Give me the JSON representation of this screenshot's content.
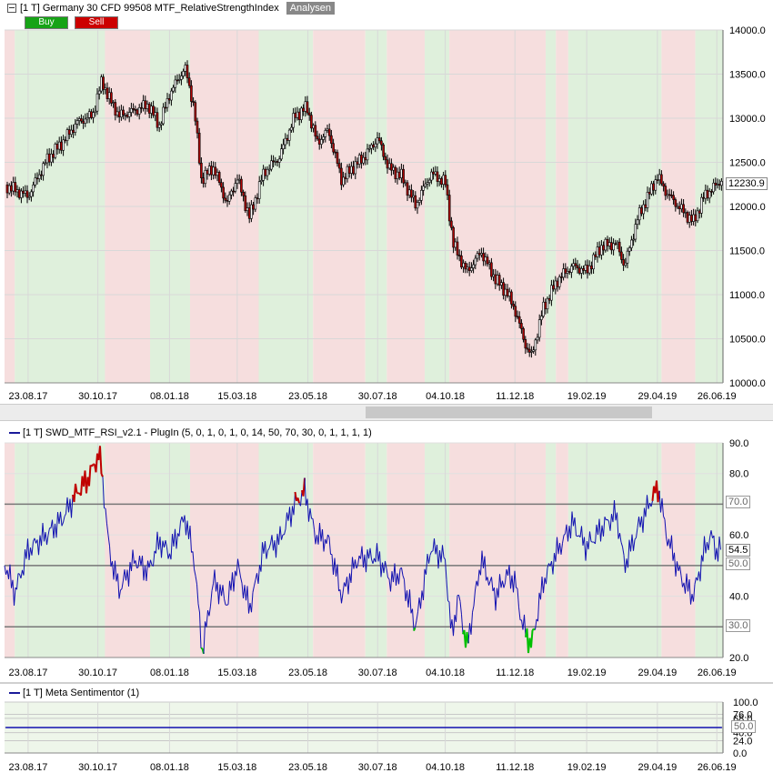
{
  "price_panel": {
    "title": "[1 T] Germany 30 CFD   99508 MTF_RelativeStrengthIndex",
    "analysen_tag": "Analysen",
    "buy_label": "Buy",
    "sell_label": "Sell",
    "last_value": "12230.9",
    "buy_color": "#17a317",
    "sell_color": "#cc0000"
  },
  "rsi_panel": {
    "title": "[1 T] SWD_MTF_RSI_v2.1 - PlugIn  (5, 0, 1, 0, 1, 0, 14, 50, 70, 30, 0, 1, 1, 1, 1)",
    "last_value": "54.5",
    "level_70": "70.0",
    "level_50": "50.0",
    "level_30": "30.0"
  },
  "sentimentor_panel": {
    "title": "[1 T] Meta Sentimentor  (1)",
    "level_50": "50.0"
  },
  "colors": {
    "bull_zone": "#dff0dc",
    "bear_zone": "#f6dede",
    "rsi_line": "#1010b0",
    "rsi_overbought": "#c00000",
    "rsi_oversold": "#00c000",
    "candle_bear_fill": "#b00000"
  },
  "chart_data": [
    {
      "type": "candlestick",
      "title": "Germany 30 CFD",
      "x_ticks": [
        "23.08.17",
        "30.10.17",
        "08.01.18",
        "15.03.18",
        "23.05.18",
        "30.07.18",
        "04.10.18",
        "11.12.18",
        "19.02.19",
        "29.04.19",
        "26.06.19"
      ],
      "y_ticks": [
        "14000.0",
        "13500.0",
        "13000.0",
        "12500.0",
        "12000.0",
        "11500.0",
        "11000.0",
        "10500.0",
        "10000.0"
      ],
      "ylim": [
        10000,
        14000
      ],
      "close_series": [
        {
          "date": "2017-08-01",
          "close": 12250
        },
        {
          "date": "2017-08-23",
          "close": 12100
        },
        {
          "date": "2017-09-10",
          "close": 12500
        },
        {
          "date": "2017-09-25",
          "close": 12700
        },
        {
          "date": "2017-10-10",
          "close": 12950
        },
        {
          "date": "2017-10-25",
          "close": 13050
        },
        {
          "date": "2017-11-03",
          "close": 13450
        },
        {
          "date": "2017-11-10",
          "close": 13250
        },
        {
          "date": "2017-11-20",
          "close": 13050
        },
        {
          "date": "2017-12-05",
          "close": 13100
        },
        {
          "date": "2017-12-18",
          "close": 13150
        },
        {
          "date": "2017-12-29",
          "close": 12900
        },
        {
          "date": "2018-01-08",
          "close": 13250
        },
        {
          "date": "2018-01-23",
          "close": 13550
        },
        {
          "date": "2018-02-01",
          "close": 13100
        },
        {
          "date": "2018-02-08",
          "close": 12300
        },
        {
          "date": "2018-02-20",
          "close": 12450
        },
        {
          "date": "2018-03-05",
          "close": 12050
        },
        {
          "date": "2018-03-15",
          "close": 12350
        },
        {
          "date": "2018-03-27",
          "close": 11900
        },
        {
          "date": "2018-04-10",
          "close": 12400
        },
        {
          "date": "2018-04-25",
          "close": 12550
        },
        {
          "date": "2018-05-10",
          "close": 13000
        },
        {
          "date": "2018-05-22",
          "close": 13100
        },
        {
          "date": "2018-06-01",
          "close": 12700
        },
        {
          "date": "2018-06-12",
          "close": 12850
        },
        {
          "date": "2018-06-25",
          "close": 12300
        },
        {
          "date": "2018-07-05",
          "close": 12450
        },
        {
          "date": "2018-07-18",
          "close": 12600
        },
        {
          "date": "2018-07-30",
          "close": 12800
        },
        {
          "date": "2018-08-10",
          "close": 12450
        },
        {
          "date": "2018-08-22",
          "close": 12350
        },
        {
          "date": "2018-09-05",
          "close": 12000
        },
        {
          "date": "2018-09-20",
          "close": 12350
        },
        {
          "date": "2018-10-04",
          "close": 12250
        },
        {
          "date": "2018-10-12",
          "close": 11550
        },
        {
          "date": "2018-10-25",
          "close": 11250
        },
        {
          "date": "2018-11-08",
          "close": 11500
        },
        {
          "date": "2018-11-22",
          "close": 11200
        },
        {
          "date": "2018-12-03",
          "close": 11050
        },
        {
          "date": "2018-12-11",
          "close": 10850
        },
        {
          "date": "2018-12-21",
          "close": 10450
        },
        {
          "date": "2018-12-27",
          "close": 10300
        },
        {
          "date": "2019-01-08",
          "close": 10850
        },
        {
          "date": "2019-01-22",
          "close": 11150
        },
        {
          "date": "2019-02-05",
          "close": 11300
        },
        {
          "date": "2019-02-19",
          "close": 11250
        },
        {
          "date": "2019-03-05",
          "close": 11550
        },
        {
          "date": "2019-03-20",
          "close": 11600
        },
        {
          "date": "2019-03-28",
          "close": 11350
        },
        {
          "date": "2019-04-10",
          "close": 11900
        },
        {
          "date": "2019-04-29",
          "close": 12350
        },
        {
          "date": "2019-05-08",
          "close": 12150
        },
        {
          "date": "2019-05-22",
          "close": 11950
        },
        {
          "date": "2019-06-03",
          "close": 11800
        },
        {
          "date": "2019-06-14",
          "close": 12100
        },
        {
          "date": "2019-06-26",
          "close": 12230.9
        },
        {
          "date": "2019-07-01",
          "close": 12300
        }
      ]
    },
    {
      "type": "line",
      "title": "SWD_MTF_RSI_v2.1",
      "x_ticks": [
        "23.08.17",
        "30.10.17",
        "08.01.18",
        "15.03.18",
        "23.05.18",
        "30.07.18",
        "04.10.18",
        "11.12.18",
        "19.02.19",
        "29.04.19",
        "26.06.19"
      ],
      "y_ticks": [
        "90.0",
        "80.0",
        "70.0",
        "60.0",
        "50.0",
        "40.0",
        "30.0",
        "20.0"
      ],
      "ylim": [
        20,
        90
      ],
      "levels": [
        70,
        50,
        30
      ],
      "series": [
        {
          "values": [
            {
              "date": "2017-08-01",
              "rsi": 50
            },
            {
              "date": "2017-08-10",
              "rsi": 41
            },
            {
              "date": "2017-08-23",
              "rsi": 55
            },
            {
              "date": "2017-09-10",
              "rsi": 60
            },
            {
              "date": "2017-09-25",
              "rsi": 65
            },
            {
              "date": "2017-10-10",
              "rsi": 74
            },
            {
              "date": "2017-10-20",
              "rsi": 78
            },
            {
              "date": "2017-11-01",
              "rsi": 87
            },
            {
              "date": "2017-11-06",
              "rsi": 70
            },
            {
              "date": "2017-11-10",
              "rsi": 55
            },
            {
              "date": "2017-11-20",
              "rsi": 42
            },
            {
              "date": "2017-12-05",
              "rsi": 52
            },
            {
              "date": "2017-12-18",
              "rsi": 48
            },
            {
              "date": "2017-12-29",
              "rsi": 58
            },
            {
              "date": "2018-01-08",
              "rsi": 54
            },
            {
              "date": "2018-01-23",
              "rsi": 66
            },
            {
              "date": "2018-02-01",
              "rsi": 52
            },
            {
              "date": "2018-02-09",
              "rsi": 22
            },
            {
              "date": "2018-02-20",
              "rsi": 45
            },
            {
              "date": "2018-03-05",
              "rsi": 38
            },
            {
              "date": "2018-03-15",
              "rsi": 50
            },
            {
              "date": "2018-03-27",
              "rsi": 36
            },
            {
              "date": "2018-04-10",
              "rsi": 55
            },
            {
              "date": "2018-04-25",
              "rsi": 58
            },
            {
              "date": "2018-05-10",
              "rsi": 70
            },
            {
              "date": "2018-05-20",
              "rsi": 74
            },
            {
              "date": "2018-05-30",
              "rsi": 60
            },
            {
              "date": "2018-06-12",
              "rsi": 58
            },
            {
              "date": "2018-06-25",
              "rsi": 40
            },
            {
              "date": "2018-07-10",
              "rsi": 52
            },
            {
              "date": "2018-07-30",
              "rsi": 53
            },
            {
              "date": "2018-08-12",
              "rsi": 45
            },
            {
              "date": "2018-08-22",
              "rsi": 48
            },
            {
              "date": "2018-09-05",
              "rsi": 30
            },
            {
              "date": "2018-09-20",
              "rsi": 56
            },
            {
              "date": "2018-10-04",
              "rsi": 52
            },
            {
              "date": "2018-10-10",
              "rsi": 27
            },
            {
              "date": "2018-10-17",
              "rsi": 40
            },
            {
              "date": "2018-10-25",
              "rsi": 23
            },
            {
              "date": "2018-11-08",
              "rsi": 52
            },
            {
              "date": "2018-11-22",
              "rsi": 40
            },
            {
              "date": "2018-12-03",
              "rsi": 47
            },
            {
              "date": "2018-12-11",
              "rsi": 45
            },
            {
              "date": "2018-12-18",
              "rsi": 31
            },
            {
              "date": "2018-12-27",
              "rsi": 24
            },
            {
              "date": "2019-01-08",
              "rsi": 45
            },
            {
              "date": "2019-01-22",
              "rsi": 55
            },
            {
              "date": "2019-02-05",
              "rsi": 64
            },
            {
              "date": "2019-02-19",
              "rsi": 56
            },
            {
              "date": "2019-03-05",
              "rsi": 62
            },
            {
              "date": "2019-03-20",
              "rsi": 67
            },
            {
              "date": "2019-03-28",
              "rsi": 50
            },
            {
              "date": "2019-04-10",
              "rsi": 62
            },
            {
              "date": "2019-04-25",
              "rsi": 73
            },
            {
              "date": "2019-04-30",
              "rsi": 75
            },
            {
              "date": "2019-05-08",
              "rsi": 60
            },
            {
              "date": "2019-05-22",
              "rsi": 46
            },
            {
              "date": "2019-06-03",
              "rsi": 40
            },
            {
              "date": "2019-06-14",
              "rsi": 55
            },
            {
              "date": "2019-06-20",
              "rsi": 60
            },
            {
              "date": "2019-06-26",
              "rsi": 54.5
            },
            {
              "date": "2019-07-01",
              "rsi": 56
            }
          ]
        }
      ]
    },
    {
      "type": "line",
      "title": "Meta Sentimentor",
      "x_ticks": [
        "23.08.17",
        "30.10.17",
        "08.01.18",
        "15.03.18",
        "23.05.18",
        "30.07.18",
        "04.10.18",
        "11.12.18",
        "19.02.19",
        "29.04.19",
        "26.06.19"
      ],
      "y_ticks": [
        "100.0",
        "76.0",
        "68.0",
        "50.0",
        "40.0",
        "24.0",
        "0.0"
      ],
      "ylim": [
        0,
        100
      ],
      "series": [
        {
          "values": [
            {
              "date": "2017-08-01",
              "v": 50
            },
            {
              "date": "2019-07-01",
              "v": 50
            }
          ]
        }
      ]
    }
  ],
  "zones": [
    {
      "start": "2017-07-31",
      "end": "2017-08-10",
      "type": "bear"
    },
    {
      "start": "2017-08-10",
      "end": "2017-11-06",
      "type": "bull"
    },
    {
      "start": "2017-11-06",
      "end": "2017-12-20",
      "type": "bear"
    },
    {
      "start": "2017-12-20",
      "end": "2018-01-28",
      "type": "bull"
    },
    {
      "start": "2018-01-28",
      "end": "2018-04-05",
      "type": "bear"
    },
    {
      "start": "2018-04-05",
      "end": "2018-05-28",
      "type": "bull"
    },
    {
      "start": "2018-05-28",
      "end": "2018-07-18",
      "type": "bear"
    },
    {
      "start": "2018-07-18",
      "end": "2018-08-08",
      "type": "bull"
    },
    {
      "start": "2018-08-08",
      "end": "2018-09-14",
      "type": "bear"
    },
    {
      "start": "2018-09-14",
      "end": "2018-10-08",
      "type": "bull"
    },
    {
      "start": "2018-10-08",
      "end": "2019-01-10",
      "type": "bear"
    },
    {
      "start": "2019-01-10",
      "end": "2019-01-20",
      "type": "bull"
    },
    {
      "start": "2019-01-20",
      "end": "2019-02-01",
      "type": "bear"
    },
    {
      "start": "2019-02-01",
      "end": "2019-05-03",
      "type": "bull"
    },
    {
      "start": "2019-05-03",
      "end": "2019-06-05",
      "type": "bear"
    },
    {
      "start": "2019-06-05",
      "end": "2019-07-02",
      "type": "bull"
    }
  ]
}
